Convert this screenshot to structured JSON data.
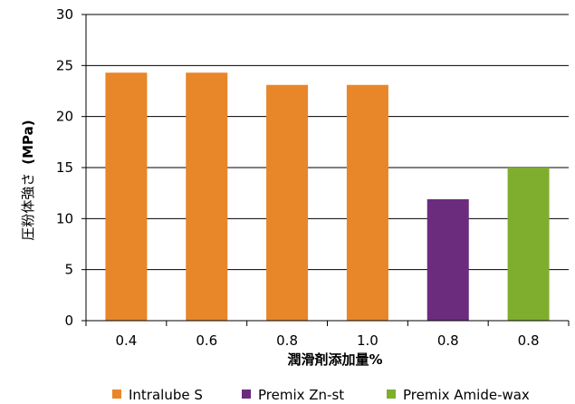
{
  "chart_data": {
    "type": "bar",
    "categories": [
      "0.4",
      "0.6",
      "0.8",
      "1.0",
      "0.8",
      "0.8"
    ],
    "values": [
      24.3,
      24.3,
      23.1,
      23.1,
      11.9,
      15.0
    ],
    "bar_series": [
      "Intralube S",
      "Intralube S",
      "Intralube S",
      "Intralube S",
      "Premix Zn-st",
      "Premix Amide-wax"
    ],
    "series": [
      {
        "name": "Intralube S",
        "color": "#E8862A"
      },
      {
        "name": "Premix Zn-st",
        "color": "#6B2C7E"
      },
      {
        "name": "Premix Amide-wax",
        "color": "#7FAE2E"
      }
    ],
    "xlabel": "潤滑剤添加量%",
    "ylabel_main": "圧粉体強さ",
    "ylabel_unit": "(MPa)",
    "ylim": [
      0,
      30
    ],
    "yticks": [
      "0",
      "5",
      "10",
      "15",
      "20",
      "25",
      "30"
    ],
    "grid": true,
    "legend_position": "bottom"
  }
}
